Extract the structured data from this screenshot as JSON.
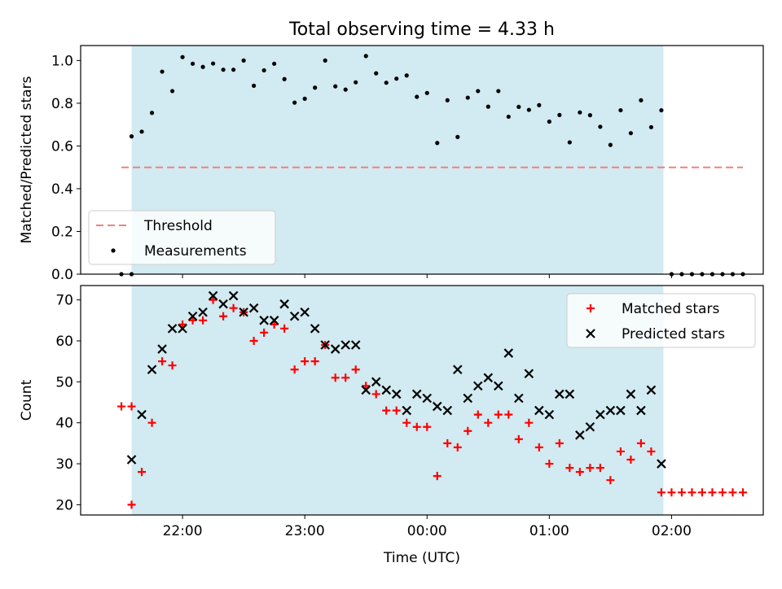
{
  "chart_data": [
    {
      "type": "scatter",
      "title": "Total observing time = 4.33 h",
      "ylabel": "Matched/Predicted stars",
      "xlabel": "",
      "ylim": [
        0,
        1.07
      ],
      "yticks": [
        "0.0",
        "0.2",
        "0.4",
        "0.6",
        "0.8",
        "1.0"
      ],
      "yticks_values": [
        0,
        0.2,
        0.4,
        0.6,
        0.8,
        1.0
      ],
      "shaded_region": {
        "from": "21:35",
        "to": "01:56",
        "color": "#add8e6"
      },
      "legend_position": "lower-left",
      "threshold": {
        "name": "Threshold",
        "value": 0.5,
        "from": "21:30",
        "to": "02:35",
        "color": "#f08080"
      },
      "series": [
        {
          "name": "Measurements",
          "color": "#000000",
          "points": [
            [
              "21:30",
              0.0
            ],
            [
              "21:35",
              0.0
            ],
            [
              "21:35",
              0.645
            ],
            [
              "21:40",
              0.667
            ],
            [
              "21:45",
              0.755
            ],
            [
              "21:50",
              0.948
            ],
            [
              "21:55",
              0.857
            ],
            [
              "22:00",
              1.016
            ],
            [
              "22:05",
              0.985
            ],
            [
              "22:10",
              0.97
            ],
            [
              "22:15",
              0.986
            ],
            [
              "22:20",
              0.957
            ],
            [
              "22:25",
              0.957
            ],
            [
              "22:30",
              1.0
            ],
            [
              "22:35",
              0.882
            ],
            [
              "22:40",
              0.954
            ],
            [
              "22:45",
              0.985
            ],
            [
              "22:50",
              0.913
            ],
            [
              "22:55",
              0.803
            ],
            [
              "23:00",
              0.821
            ],
            [
              "23:05",
              0.873
            ],
            [
              "23:10",
              1.0
            ],
            [
              "23:15",
              0.879
            ],
            [
              "23:20",
              0.864
            ],
            [
              "23:25",
              0.898
            ],
            [
              "23:30",
              1.021
            ],
            [
              "23:35",
              0.94
            ],
            [
              "23:40",
              0.896
            ],
            [
              "23:45",
              0.915
            ],
            [
              "23:50",
              0.93
            ],
            [
              "23:55",
              0.83
            ],
            [
              "00:00",
              0.848
            ],
            [
              "00:05",
              0.614
            ],
            [
              "00:10",
              0.814
            ],
            [
              "00:15",
              0.642
            ],
            [
              "00:20",
              0.826
            ],
            [
              "00:25",
              0.857
            ],
            [
              "00:30",
              0.784
            ],
            [
              "00:35",
              0.857
            ],
            [
              "00:40",
              0.737
            ],
            [
              "00:45",
              0.783
            ],
            [
              "00:50",
              0.769
            ],
            [
              "00:55",
              0.791
            ],
            [
              "01:00",
              0.714
            ],
            [
              "01:05",
              0.745
            ],
            [
              "01:10",
              0.617
            ],
            [
              "01:15",
              0.757
            ],
            [
              "01:20",
              0.744
            ],
            [
              "01:25",
              0.69
            ],
            [
              "01:30",
              0.605
            ],
            [
              "01:35",
              0.767
            ],
            [
              "01:40",
              0.66
            ],
            [
              "01:45",
              0.814
            ],
            [
              "01:50",
              0.688
            ],
            [
              "01:55",
              0.767
            ],
            [
              "02:00",
              0.0
            ],
            [
              "02:05",
              0.0
            ],
            [
              "02:10",
              0.0
            ],
            [
              "02:15",
              0.0
            ],
            [
              "02:20",
              0.0
            ],
            [
              "02:25",
              0.0
            ],
            [
              "02:30",
              0.0
            ],
            [
              "02:35",
              0.0
            ]
          ]
        }
      ]
    },
    {
      "type": "scatter",
      "ylabel": "Count",
      "xlabel": "Time (UTC)",
      "ylim": [
        17.5,
        73.5
      ],
      "yticks": [
        "20",
        "30",
        "40",
        "50",
        "60",
        "70"
      ],
      "yticks_values": [
        20,
        30,
        40,
        50,
        60,
        70
      ],
      "xticks": [
        "22:00",
        "23:00",
        "00:00",
        "01:00",
        "02:00"
      ],
      "xlim": [
        "21:10",
        "02:45"
      ],
      "shaded_region": {
        "from": "21:35",
        "to": "01:56",
        "color": "#add8e6"
      },
      "legend_position": "upper-right",
      "series": [
        {
          "name": "Matched stars",
          "marker": "plus",
          "color": "#ff0000",
          "points": [
            [
              "21:30",
              44
            ],
            [
              "21:35",
              44
            ],
            [
              "21:35",
              20
            ],
            [
              "21:40",
              28
            ],
            [
              "21:45",
              40
            ],
            [
              "21:50",
              55
            ],
            [
              "21:55",
              54
            ],
            [
              "22:00",
              64
            ],
            [
              "22:05",
              65
            ],
            [
              "22:10",
              65
            ],
            [
              "22:15",
              70
            ],
            [
              "22:20",
              66
            ],
            [
              "22:25",
              68
            ],
            [
              "22:30",
              67
            ],
            [
              "22:35",
              60
            ],
            [
              "22:40",
              62
            ],
            [
              "22:45",
              64
            ],
            [
              "22:50",
              63
            ],
            [
              "22:55",
              53
            ],
            [
              "23:00",
              55
            ],
            [
              "23:05",
              55
            ],
            [
              "23:10",
              59
            ],
            [
              "23:15",
              51
            ],
            [
              "23:20",
              51
            ],
            [
              "23:25",
              53
            ],
            [
              "23:30",
              49
            ],
            [
              "23:35",
              47
            ],
            [
              "23:40",
              43
            ],
            [
              "23:45",
              43
            ],
            [
              "23:50",
              40
            ],
            [
              "23:55",
              39
            ],
            [
              "00:00",
              39
            ],
            [
              "00:05",
              27
            ],
            [
              "00:10",
              35
            ],
            [
              "00:15",
              34
            ],
            [
              "00:20",
              38
            ],
            [
              "00:25",
              42
            ],
            [
              "00:30",
              40
            ],
            [
              "00:35",
              42
            ],
            [
              "00:40",
              42
            ],
            [
              "00:45",
              36
            ],
            [
              "00:50",
              40
            ],
            [
              "00:55",
              34
            ],
            [
              "01:00",
              30
            ],
            [
              "01:05",
              35
            ],
            [
              "01:10",
              29
            ],
            [
              "01:15",
              28
            ],
            [
              "01:20",
              29
            ],
            [
              "01:25",
              29
            ],
            [
              "01:30",
              26
            ],
            [
              "01:35",
              33
            ],
            [
              "01:40",
              31
            ],
            [
              "01:45",
              35
            ],
            [
              "01:50",
              33
            ],
            [
              "01:55",
              23
            ],
            [
              "02:00",
              23
            ],
            [
              "02:05",
              23
            ],
            [
              "02:10",
              23
            ],
            [
              "02:15",
              23
            ],
            [
              "02:20",
              23
            ],
            [
              "02:25",
              23
            ],
            [
              "02:30",
              23
            ],
            [
              "02:35",
              23
            ]
          ]
        },
        {
          "name": "Predicted stars",
          "marker": "x",
          "color": "#000000",
          "points": [
            [
              "21:35",
              31
            ],
            [
              "21:40",
              42
            ],
            [
              "21:45",
              53
            ],
            [
              "21:50",
              58
            ],
            [
              "21:55",
              63
            ],
            [
              "22:00",
              63
            ],
            [
              "22:05",
              66
            ],
            [
              "22:10",
              67
            ],
            [
              "22:15",
              71
            ],
            [
              "22:20",
              69
            ],
            [
              "22:25",
              71
            ],
            [
              "22:30",
              67
            ],
            [
              "22:35",
              68
            ],
            [
              "22:40",
              65
            ],
            [
              "22:45",
              65
            ],
            [
              "22:50",
              69
            ],
            [
              "22:55",
              66
            ],
            [
              "23:00",
              67
            ],
            [
              "23:05",
              63
            ],
            [
              "23:10",
              59
            ],
            [
              "23:15",
              58
            ],
            [
              "23:20",
              59
            ],
            [
              "23:25",
              59
            ],
            [
              "23:30",
              48
            ],
            [
              "23:35",
              50
            ],
            [
              "23:40",
              48
            ],
            [
              "23:45",
              47
            ],
            [
              "23:50",
              43
            ],
            [
              "23:55",
              47
            ],
            [
              "00:00",
              46
            ],
            [
              "00:05",
              44
            ],
            [
              "00:10",
              43
            ],
            [
              "00:15",
              53
            ],
            [
              "00:20",
              46
            ],
            [
              "00:25",
              49
            ],
            [
              "00:30",
              51
            ],
            [
              "00:35",
              49
            ],
            [
              "00:40",
              57
            ],
            [
              "00:45",
              46
            ],
            [
              "00:50",
              52
            ],
            [
              "00:55",
              43
            ],
            [
              "01:00",
              42
            ],
            [
              "01:05",
              47
            ],
            [
              "01:10",
              47
            ],
            [
              "01:15",
              37
            ],
            [
              "01:20",
              39
            ],
            [
              "01:25",
              42
            ],
            [
              "01:30",
              43
            ],
            [
              "01:35",
              43
            ],
            [
              "01:40",
              47
            ],
            [
              "01:45",
              43
            ],
            [
              "01:50",
              48
            ],
            [
              "01:55",
              30
            ]
          ]
        }
      ]
    }
  ]
}
